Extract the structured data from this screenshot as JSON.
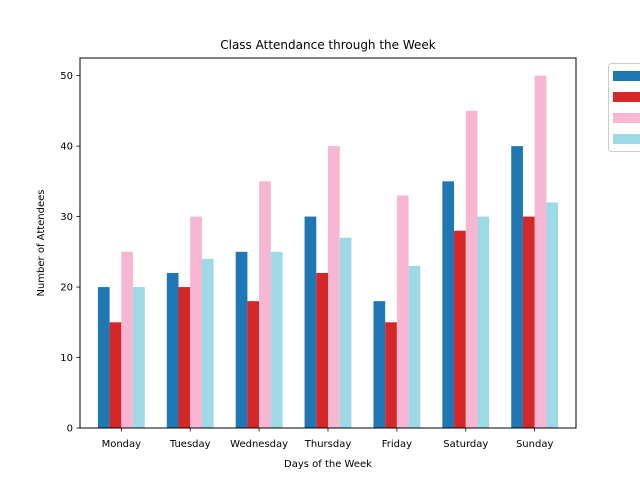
{
  "chart_data": {
    "type": "bar",
    "title": "Class Attendance through the Week",
    "xlabel": "Days of the Week",
    "ylabel": "Number of Attendees",
    "categories": [
      "Monday",
      "Tuesday",
      "Wednesday",
      "Thursday",
      "Friday",
      "Saturday",
      "Sunday"
    ],
    "ylim": [
      0,
      52.5
    ],
    "yticks": [
      0,
      10,
      20,
      30,
      40,
      50
    ],
    "grid": false,
    "legend": {
      "placement": "outside-top-right"
    },
    "series": [
      {
        "color": "#1f77b4",
        "values": [
          20,
          22,
          25,
          30,
          18,
          35,
          40
        ]
      },
      {
        "color": "#d62728",
        "values": [
          15,
          20,
          18,
          22,
          15,
          28,
          30
        ]
      },
      {
        "color": "#f7b6d2",
        "values": [
          25,
          30,
          35,
          40,
          33,
          45,
          50
        ]
      },
      {
        "color": "#9edae5",
        "values": [
          20,
          24,
          25,
          27,
          23,
          30,
          32
        ]
      }
    ]
  }
}
